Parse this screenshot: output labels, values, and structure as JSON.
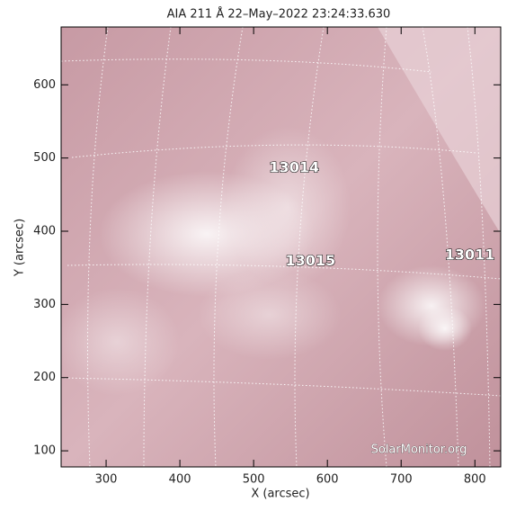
{
  "chart_data": {
    "type": "image",
    "title": "AIA 211 Å 22–May–2022 23:24:33.630",
    "x_label": "X (arcsec)",
    "y_label": "Y (arcsec)",
    "xlim": [
      239,
      835
    ],
    "ylim": [
      78,
      679
    ],
    "xticks": [
      300,
      400,
      500,
      600,
      700,
      800
    ],
    "yticks": [
      100,
      200,
      300,
      400,
      500,
      600
    ],
    "annotations": [
      {
        "text": "13014",
        "x": 555,
        "y": 486
      },
      {
        "text": "13015",
        "x": 577,
        "y": 359
      },
      {
        "text": "13011",
        "x": 793,
        "y": 367
      }
    ],
    "watermark": "SolarMonitor.org"
  }
}
